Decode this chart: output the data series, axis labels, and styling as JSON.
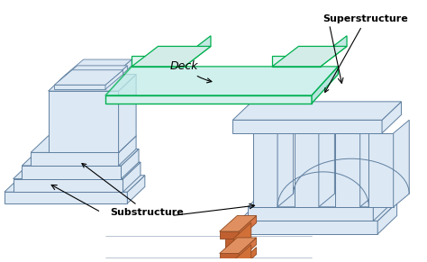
{
  "bg_color": "#ffffff",
  "lc": "#6080a0",
  "pf": "#dce8f4",
  "pe": "#6080a0",
  "df": "#c0ece8",
  "de": "#00b050",
  "gf": "#c06030",
  "ge": "#904820",
  "label_deck": "Deck",
  "label_super": "Superstructure",
  "label_sub": "Substructure"
}
